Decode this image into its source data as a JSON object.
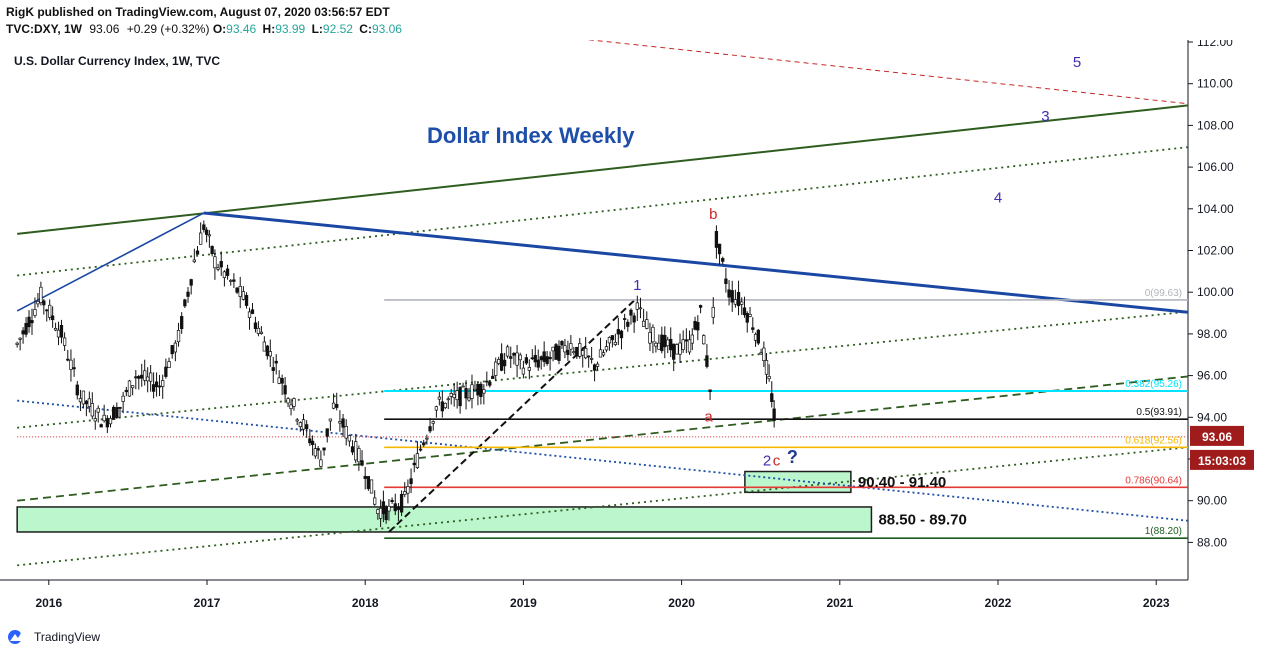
{
  "header": {
    "publisher_line": "RigK published on TradingView.com, August 07, 2020 03:56:57 EDT",
    "symbol": "TVC:DXY, 1W",
    "last": "93.06",
    "change": "+0.29 (+0.32%)",
    "ohlc_o_label": "O:",
    "ohlc_o": "93.46",
    "ohlc_h_label": "H:",
    "ohlc_h": "93.99",
    "ohlc_l_label": "L:",
    "ohlc_l": "92.52",
    "ohlc_c_label": "C:",
    "ohlc_c": "93.06"
  },
  "chart_data": {
    "type": "candlestick",
    "title": "U.S. Dollar Currency Index, 1W, TVC",
    "annotation_title": "Dollar Index Weekly",
    "y_axis": {
      "min": 86.5,
      "max": 112,
      "ticks": [
        "88.00",
        "90.00",
        "92.00",
        "94.00",
        "96.00",
        "98.00",
        "100.00",
        "102.00",
        "104.00",
        "106.00",
        "108.00",
        "110.00",
        "112.00"
      ]
    },
    "x_axis": {
      "start": 2015.8,
      "end": 2023.2,
      "ticks": [
        "2016",
        "2017",
        "2018",
        "2019",
        "2020",
        "2021",
        "2022",
        "2023"
      ]
    },
    "price_path": [
      [
        2015.8,
        97.5
      ],
      [
        2015.95,
        99.8
      ],
      [
        2016.08,
        98.0
      ],
      [
        2016.2,
        95.0
      ],
      [
        2016.35,
        93.8
      ],
      [
        2016.45,
        94.5
      ],
      [
        2016.55,
        96.0
      ],
      [
        2016.7,
        95.5
      ],
      [
        2016.82,
        97.8
      ],
      [
        2016.92,
        101.5
      ],
      [
        2016.98,
        103.2
      ],
      [
        2017.05,
        101.5
      ],
      [
        2017.15,
        100.5
      ],
      [
        2017.25,
        99.5
      ],
      [
        2017.4,
        97.0
      ],
      [
        2017.55,
        94.5
      ],
      [
        2017.65,
        93.0
      ],
      [
        2017.72,
        92.0
      ],
      [
        2017.8,
        94.5
      ],
      [
        2017.9,
        93.0
      ],
      [
        2018.0,
        91.5
      ],
      [
        2018.08,
        89.6
      ],
      [
        2018.15,
        89.5
      ],
      [
        2018.25,
        90.0
      ],
      [
        2018.35,
        92.5
      ],
      [
        2018.45,
        94.5
      ],
      [
        2018.6,
        95.0
      ],
      [
        2018.75,
        95.5
      ],
      [
        2018.9,
        97.0
      ],
      [
        2019.0,
        96.5
      ],
      [
        2019.15,
        96.8
      ],
      [
        2019.3,
        97.5
      ],
      [
        2019.45,
        96.5
      ],
      [
        2019.6,
        98.0
      ],
      [
        2019.72,
        99.2
      ],
      [
        2019.8,
        98.0
      ],
      [
        2019.95,
        97.2
      ],
      [
        2020.05,
        97.5
      ],
      [
        2020.12,
        99.0
      ],
      [
        2020.18,
        95.5
      ],
      [
        2020.22,
        102.5
      ],
      [
        2020.3,
        100.0
      ],
      [
        2020.38,
        99.5
      ],
      [
        2020.45,
        98.5
      ],
      [
        2020.52,
        97.0
      ],
      [
        2020.57,
        95.0
      ],
      [
        2020.6,
        93.0
      ]
    ],
    "last_price": "93.06",
    "countdown": "15:03:03",
    "fib_levels": [
      {
        "label": "0(99.63)",
        "value": 99.63,
        "color": "#b2b5be"
      },
      {
        "label": "0.382(95.26)",
        "value": 95.26,
        "color": "#00e5ff"
      },
      {
        "label": "0.5(93.91)",
        "value": 93.91,
        "color": "#111111"
      },
      {
        "label": "0.618(92.56)",
        "value": 92.56,
        "color": "#f5b700"
      },
      {
        "label": "0.786(90.64)",
        "value": 90.64,
        "color": "#e53935"
      },
      {
        "label": "1(88.20)",
        "value": 88.2,
        "color": "#1b5e20"
      }
    ],
    "zones": [
      {
        "label": "90.40 - 91.40",
        "low": 90.4,
        "high": 91.4,
        "x0": 2020.4,
        "x1": 2021.07
      },
      {
        "label": "88.50 - 89.70",
        "low": 88.5,
        "high": 89.7,
        "x0": 2015.8,
        "x1": 2021.2
      }
    ],
    "wave_labels": [
      {
        "text": "1",
        "x": 2019.72,
        "y": 100.1,
        "color": "#3f2fb0"
      },
      {
        "text": "2",
        "x": 2020.54,
        "y": 91.7,
        "color": "#3f2fb0"
      },
      {
        "text": "3",
        "x": 2022.3,
        "y": 108.2,
        "color": "#3f2fb0"
      },
      {
        "text": "4",
        "x": 2022.0,
        "y": 104.3,
        "color": "#3f2fb0"
      },
      {
        "text": "5",
        "x": 2022.5,
        "y": 110.8,
        "color": "#3f2fb0"
      },
      {
        "text": "a",
        "x": 2020.17,
        "y": 93.8,
        "color": "#c62828"
      },
      {
        "text": "b",
        "x": 2020.2,
        "y": 103.5,
        "color": "#c62828"
      },
      {
        "text": "c",
        "x": 2020.6,
        "y": 91.7,
        "color": "#c62828"
      },
      {
        "text": "?",
        "x": 2020.7,
        "y": 91.8,
        "color": "#1e3a8a"
      }
    ]
  },
  "footer": {
    "brand": "TradingView"
  }
}
